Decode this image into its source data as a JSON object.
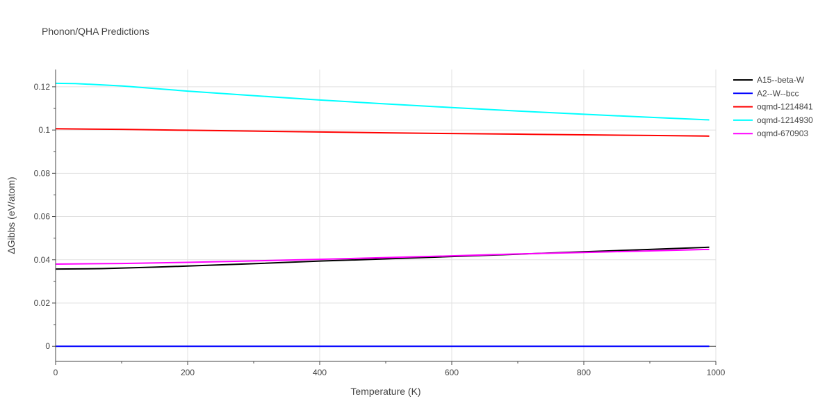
{
  "chart_data": {
    "type": "line",
    "title": "Phonon/QHA Predictions",
    "xlabel": "Temperature (K)",
    "ylabel": "ΔGibbs (eV/atom)",
    "xlim": [
      0,
      1000
    ],
    "ylim": [
      -0.007,
      0.128
    ],
    "x_ticks": [
      0,
      200,
      400,
      600,
      800,
      1000
    ],
    "x_tick_labels": [
      "0",
      "200",
      "400",
      "600",
      "800",
      "1000"
    ],
    "y_ticks": [
      0,
      0.02,
      0.04,
      0.06,
      0.08,
      0.1,
      0.12
    ],
    "y_tick_labels": [
      "0",
      "0.02",
      "0.04",
      "0.06",
      "0.08",
      "0.1",
      "0.12"
    ],
    "grid": true,
    "legend_position": "top-right outside",
    "series": [
      {
        "name": "A15--beta-W",
        "color": "#000000",
        "x": [
          0,
          70,
          150,
          200,
          300,
          400,
          500,
          600,
          700,
          800,
          900,
          990
        ],
        "y": [
          0.0357,
          0.0359,
          0.0366,
          0.0371,
          0.0382,
          0.0394,
          0.0404,
          0.0415,
          0.0426,
          0.0437,
          0.0448,
          0.0458
        ]
      },
      {
        "name": "A2--W--bcc",
        "color": "#0000ff",
        "x": [
          0,
          990
        ],
        "y": [
          0,
          0
        ]
      },
      {
        "name": "oqmd-1214841",
        "color": "#ff0000",
        "x": [
          0,
          100,
          200,
          300,
          400,
          500,
          600,
          700,
          800,
          900,
          990
        ],
        "y": [
          0.1006,
          0.1003,
          0.0999,
          0.0995,
          0.0991,
          0.0987,
          0.0984,
          0.0981,
          0.0978,
          0.0975,
          0.0972
        ]
      },
      {
        "name": "oqmd-1214930",
        "color": "#00ffff",
        "x": [
          0,
          30,
          100,
          200,
          300,
          400,
          500,
          600,
          700,
          800,
          900,
          990
        ],
        "y": [
          0.1216,
          0.1215,
          0.1204,
          0.118,
          0.1159,
          0.1139,
          0.1121,
          0.1104,
          0.1088,
          0.1073,
          0.1059,
          0.1047
        ]
      },
      {
        "name": "oqmd-670903",
        "color": "#ff00ff",
        "x": [
          0,
          100,
          200,
          300,
          400,
          500,
          600,
          700,
          800,
          900,
          990
        ],
        "y": [
          0.038,
          0.0383,
          0.0388,
          0.0395,
          0.0402,
          0.041,
          0.0418,
          0.0427,
          0.0434,
          0.0441,
          0.0448
        ]
      }
    ]
  }
}
